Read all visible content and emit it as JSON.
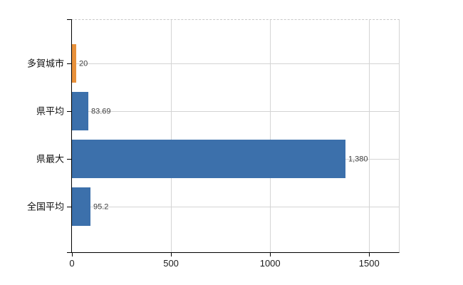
{
  "chart": {
    "title": "",
    "colors": {
      "bar_primary": "#3c70ab",
      "bar_highlight": "#e8913b",
      "grid": "#d4d4d4",
      "axis": "#000000",
      "value_label": "#3f3f3f",
      "tick_label": "#1c1c1c",
      "background": "#ffffff"
    }
  },
  "chart_data": {
    "type": "bar",
    "orientation": "horizontal",
    "title": "",
    "xlabel": "",
    "ylabel": "",
    "categories": [
      "多賀城市",
      "県平均",
      "県最大",
      "全国平均"
    ],
    "values": [
      20,
      83.69,
      1380,
      95.2
    ],
    "value_labels": [
      "20",
      "83.69",
      "1,380",
      "95.2"
    ],
    "bar_colors": [
      "#e8913b",
      "#3c70ab",
      "#3c70ab",
      "#3c70ab"
    ],
    "highlighted_category_index": 0,
    "x_ticks": [
      0,
      500,
      1000,
      1500
    ],
    "x_tick_labels": [
      "0",
      "500",
      "1000",
      "1500"
    ],
    "xlim": [
      0,
      1650
    ],
    "grid": true,
    "legend": "none"
  }
}
